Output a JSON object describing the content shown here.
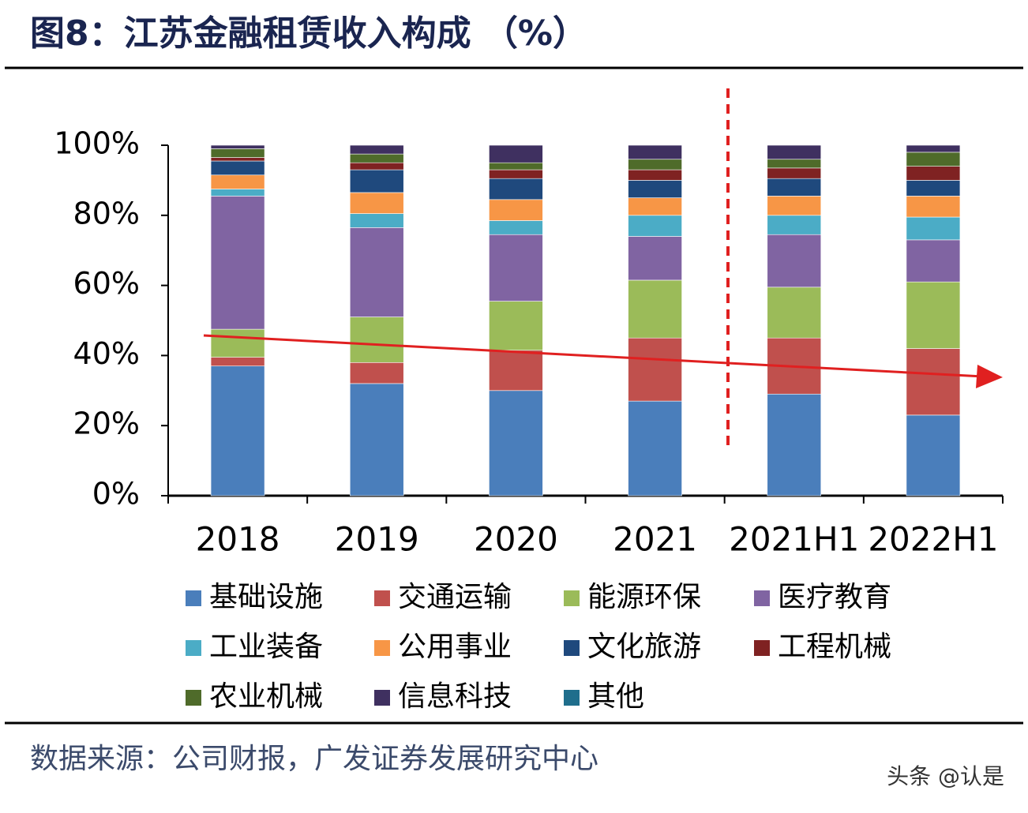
{
  "chart_data": {
    "type": "stacked_bar",
    "title": "图8：江苏金融租赁收入构成 （%）",
    "source": "数据来源：公司财报，广发证券发展研究中心",
    "watermark": "头条 @认是",
    "categories": [
      "2018",
      "2019",
      "2020",
      "2021",
      "2021H1",
      "2022H1"
    ],
    "ylim": [
      0,
      100
    ],
    "yticks": [
      {
        "value": 0,
        "label": "0%"
      },
      {
        "value": 20,
        "label": "20%"
      },
      {
        "value": 40,
        "label": "40%"
      },
      {
        "value": 60,
        "label": "60%"
      },
      {
        "value": 80,
        "label": "80%"
      },
      {
        "value": 100,
        "label": "100%"
      }
    ],
    "legend": "bottom",
    "series": [
      {
        "name": "基础设施",
        "color": "#4a7ebb",
        "values": [
          37,
          32,
          30,
          27,
          29,
          23
        ]
      },
      {
        "name": "交通运输",
        "color": "#c0504d",
        "values": [
          2.5,
          6,
          11.5,
          18,
          16,
          19
        ]
      },
      {
        "name": "能源环保",
        "color": "#9bbb59",
        "values": [
          8,
          13,
          14,
          16.5,
          14.5,
          19
        ]
      },
      {
        "name": "医疗教育",
        "color": "#8064a2",
        "values": [
          38,
          25.5,
          19,
          12.5,
          15,
          12
        ]
      },
      {
        "name": "工业装备",
        "color": "#4bacc6",
        "values": [
          2,
          4,
          4,
          6,
          5.5,
          6.5
        ]
      },
      {
        "name": "公用事业",
        "color": "#f79646",
        "values": [
          4,
          6,
          6,
          5,
          5.5,
          6
        ]
      },
      {
        "name": "文化旅游",
        "color": "#1f497d",
        "values": [
          4,
          6.5,
          6,
          5,
          5,
          4.5
        ]
      },
      {
        "name": "工程机械",
        "color": "#7f2222",
        "values": [
          1,
          2,
          2.5,
          3,
          3,
          4
        ]
      },
      {
        "name": "农业机械",
        "color": "#4f6b2a",
        "values": [
          2.5,
          2.5,
          2,
          3,
          2.5,
          4
        ]
      },
      {
        "name": "信息科技",
        "color": "#3f3060",
        "values": [
          1,
          2.5,
          5,
          4,
          4,
          2
        ]
      },
      {
        "name": "其他",
        "color": "#1f6e8c",
        "values": [
          0,
          0,
          0,
          0,
          0,
          0
        ]
      }
    ]
  }
}
